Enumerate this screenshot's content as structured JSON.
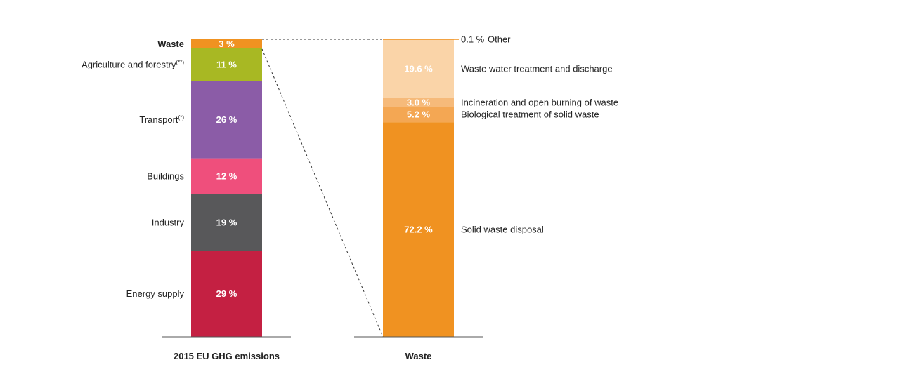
{
  "chart_data": [
    {
      "type": "bar",
      "stacked": true,
      "xlabel": "2015 EU GHG emissions",
      "unit": "%",
      "segments": [
        {
          "name": "Energy supply",
          "note": "",
          "value": 29,
          "label": "29 %",
          "color": "#c42042"
        },
        {
          "name": "Industry",
          "note": "",
          "value": 19,
          "label": "19 %",
          "color": "#58585a"
        },
        {
          "name": "Buildings",
          "note": "",
          "value": 12,
          "label": "12 %",
          "color": "#ef4f7c"
        },
        {
          "name": "Transport",
          "note": "(*)",
          "value": 26,
          "label": "26 %",
          "color": "#8b5ca7"
        },
        {
          "name": "Agriculture and forestry",
          "note": "(**)",
          "value": 11,
          "label": "11 %",
          "color": "#a8b823"
        },
        {
          "name": "Waste",
          "note": "",
          "value": 3,
          "label": "3 %",
          "color": "#f09221"
        }
      ]
    },
    {
      "type": "bar",
      "stacked": true,
      "xlabel": "Waste",
      "unit": "%",
      "segments": [
        {
          "name": "Solid waste disposal",
          "value": 72.2,
          "label": "72.2 %",
          "color": "#f09221"
        },
        {
          "name": "Biological treatment of solid waste",
          "value": 5.2,
          "label": "5.2 %",
          "color": "#f4a753"
        },
        {
          "name": "Incineration and open burning of waste",
          "value": 3.0,
          "label": "3.0 %",
          "color": "#f6ba7a"
        },
        {
          "name": "Waste water treatment and discharge",
          "value": 19.6,
          "label": "19.6 %",
          "color": "#fad4a8"
        },
        {
          "name": "Other",
          "value": 0.1,
          "label": "0.1 %",
          "color": "#f09221"
        }
      ]
    }
  ]
}
